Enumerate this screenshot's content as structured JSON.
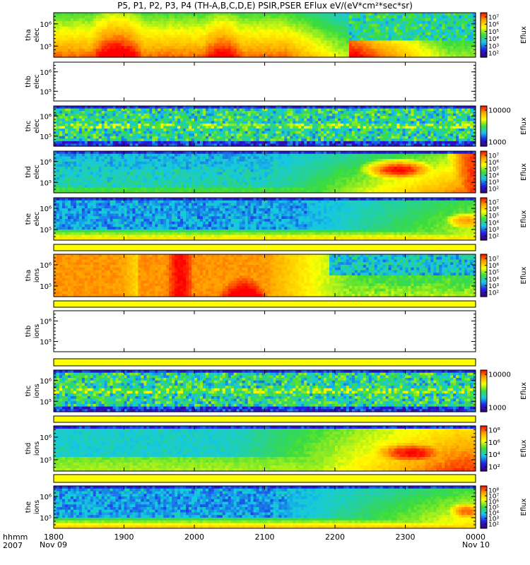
{
  "title": "P5, P1, P2, P3, P4 (TH-A,B,C,D,E) PSIR,PSER EFlux eV/(eV*cm²*sec*sr)",
  "footer": {
    "left_top": "hhmm",
    "left_bottom": "2007",
    "start_date": "Nov 09",
    "end_date": "Nov 10"
  },
  "chart_data": {
    "type": "heatmap",
    "x_axis": {
      "label": "hhmm",
      "ticks": [
        "1800",
        "1900",
        "2000",
        "2100",
        "2200",
        "2300",
        "0000"
      ],
      "range_hours": [
        18,
        24
      ]
    },
    "colormap": [
      "#3a0078",
      "#1e1ee8",
      "#14c8e6",
      "#3cdc3c",
      "#ffff00",
      "#ffa500",
      "#ff0000"
    ],
    "panels": [
      {
        "id": "tha-elec",
        "spacecraft": "tha",
        "species": "elec",
        "y_ticks": [
          "10⁶",
          "10⁵"
        ],
        "colorbar": {
          "label": "Eflux",
          "ticks": [
            "10⁷",
            "10⁶",
            "10⁵",
            "10⁴",
            "10³",
            "10²"
          ]
        },
        "pattern": "hot-early",
        "has_data": true
      },
      {
        "id": "thb-elec",
        "spacecraft": "thb",
        "species": "elec",
        "y_ticks": [
          "10⁶",
          "10⁵"
        ],
        "colorbar": null,
        "pattern": "none",
        "has_data": false
      },
      {
        "id": "thc-elec",
        "spacecraft": "thc",
        "species": "elec",
        "y_ticks": [
          "10⁶",
          "10⁵"
        ],
        "colorbar": {
          "label": "Eflux",
          "ticks": [
            "10000",
            "1000"
          ]
        },
        "pattern": "noise",
        "has_data": true
      },
      {
        "id": "thd-elec",
        "spacecraft": "thd",
        "species": "elec",
        "y_ticks": [
          "10⁶",
          "10⁵"
        ],
        "colorbar": {
          "label": "Eflux",
          "ticks": [
            "10⁷",
            "10⁶",
            "10⁵",
            "10⁴",
            "10³",
            "10²"
          ]
        },
        "pattern": "hot-late",
        "has_data": true
      },
      {
        "id": "the-elec",
        "spacecraft": "the",
        "species": "elec",
        "y_ticks": [
          "10⁶",
          "10⁵"
        ],
        "colorbar": {
          "label": "Eflux",
          "ticks": [
            "10⁷",
            "10⁶",
            "10⁵",
            "10⁴",
            "10³",
            "10²"
          ]
        },
        "pattern": "cool",
        "has_data": true
      },
      {
        "id": "tha-ions",
        "spacecraft": "tha",
        "species": "ions",
        "y_ticks": [
          "10⁶",
          "10⁵"
        ],
        "colorbar": {
          "label": "Eflux",
          "ticks": [
            "10⁷",
            "10⁶",
            "10⁵",
            "10⁴",
            "10³",
            "10²"
          ]
        },
        "pattern": "hot-early-ions",
        "has_data": true
      },
      {
        "id": "thb-ions",
        "spacecraft": "thb",
        "species": "ions",
        "y_ticks": [
          "10⁶",
          "10⁵"
        ],
        "colorbar": null,
        "pattern": "none",
        "has_data": false
      },
      {
        "id": "thc-ions",
        "spacecraft": "thc",
        "species": "ions",
        "y_ticks": [
          "10⁶",
          "10⁵"
        ],
        "colorbar": {
          "label": "Eflux",
          "ticks": [
            "10000",
            "1000"
          ]
        },
        "pattern": "noise",
        "has_data": true
      },
      {
        "id": "thd-ions",
        "spacecraft": "thd",
        "species": "ions",
        "y_ticks": [
          "10⁶",
          "10⁵"
        ],
        "colorbar": {
          "label": "Eflux",
          "ticks": [
            "10⁸",
            "10⁶",
            "10⁴",
            "10²"
          ]
        },
        "pattern": "hot-late-ions",
        "has_data": true
      },
      {
        "id": "the-ions",
        "spacecraft": "the",
        "species": "ions",
        "y_ticks": [
          "10⁶",
          "10⁵"
        ],
        "colorbar": {
          "label": "Eflux",
          "ticks": [
            "10⁸",
            "10⁷",
            "10⁶",
            "10⁵",
            "10⁴",
            "10³",
            "10²"
          ]
        },
        "pattern": "cool-ions",
        "has_data": true
      }
    ],
    "status_bars": [
      {
        "after_panel": "tha-ions",
        "color": "#ffff00"
      },
      {
        "after_panel": "thb-ions",
        "color": "#ffff00"
      },
      {
        "after_panel": "thc-ions",
        "color": "#ffff00"
      },
      {
        "after_panel": "thd-ions",
        "color": "#ffff00"
      },
      {
        "after_panel": "the-ions",
        "color": "#ffff00"
      }
    ]
  }
}
